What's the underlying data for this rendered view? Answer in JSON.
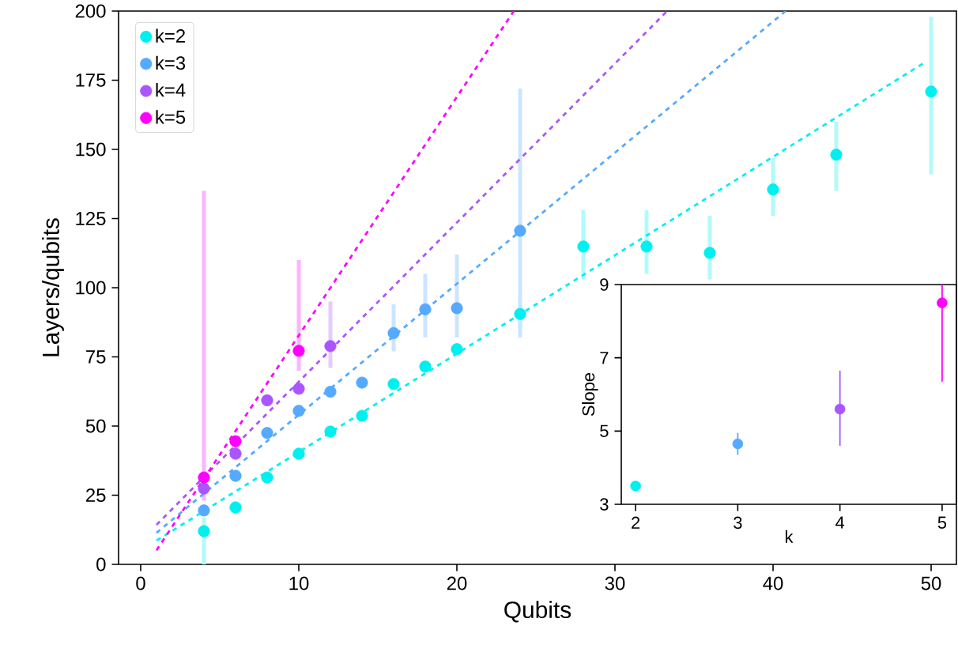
{
  "chart_data": [
    {
      "type": "scatter",
      "xlabel": "Qubits",
      "ylabel": "Layers/qubits",
      "xlim": [
        -1.4,
        51.6
      ],
      "ylim": [
        0,
        200
      ],
      "xticks": [
        0,
        10,
        20,
        30,
        40,
        50
      ],
      "yticks": [
        0,
        25,
        50,
        75,
        100,
        125,
        150,
        175,
        200
      ],
      "legend": "top left",
      "series": [
        {
          "name": "k=2",
          "marker": "circle",
          "color": "#00f0f0",
          "x": [
            4,
            6,
            8,
            10,
            12,
            14,
            16,
            18,
            20,
            24,
            28,
            32,
            36,
            40,
            44,
            50
          ],
          "values": [
            12,
            20.6,
            31.4,
            40,
            48,
            53.7,
            65.2,
            71.5,
            77.8,
            90.5,
            114.9,
            114.9,
            112.6,
            135.5,
            148.1,
            170.9
          ],
          "errors": [
            [
              0,
              17
            ],
            null,
            null,
            null,
            null,
            null,
            null,
            null,
            null,
            [
              85,
              95
            ],
            [
              103,
              128
            ],
            [
              105,
              128
            ],
            [
              103,
              126
            ],
            [
              126,
              147
            ],
            [
              135,
              160
            ],
            [
              141,
              198
            ]
          ]
        },
        {
          "name": "k=3",
          "marker": "circle",
          "color": "#55aaff",
          "x": [
            4,
            6,
            8,
            10,
            12,
            14,
            16,
            18,
            20,
            24
          ],
          "values": [
            19.5,
            32,
            47.5,
            55.5,
            62.4,
            65.7,
            83.6,
            92.2,
            92.6,
            120.6
          ],
          "errors": [
            null,
            null,
            null,
            null,
            null,
            null,
            [
              77,
              94
            ],
            [
              82,
              105
            ],
            [
              82,
              112
            ],
            [
              82,
              172
            ]
          ]
        },
        {
          "name": "k=4",
          "marker": "circle",
          "color": "#aa55ff",
          "x": [
            4,
            6,
            8,
            10,
            12
          ],
          "values": [
            27.4,
            40,
            59.3,
            63.5,
            78.9
          ],
          "errors": [
            null,
            null,
            null,
            null,
            [
              71,
              95
            ]
          ]
        },
        {
          "name": "k=5",
          "marker": "circle",
          "color": "#ff00ff",
          "x": [
            4,
            6,
            10
          ],
          "values": [
            31.4,
            44.5,
            77.2
          ],
          "errors": [
            [
              23,
              135
            ],
            null,
            [
              70,
              110
            ]
          ]
        },
        {
          "type": "line",
          "marker": "none",
          "line_style": "dashed",
          "color": "#00f0f0",
          "x": [
            1,
            49.7
          ],
          "values": [
            8.6,
            181.8
          ]
        },
        {
          "type": "line",
          "marker": "none",
          "line_style": "dashed",
          "color": "#55aaff",
          "x": [
            1,
            40.8
          ],
          "values": [
            11.4,
            200
          ]
        },
        {
          "type": "line",
          "marker": "none",
          "line_style": "dashed",
          "color": "#aa55ff",
          "x": [
            1,
            33.3
          ],
          "values": [
            14.3,
            200
          ]
        },
        {
          "type": "line",
          "marker": "none",
          "line_style": "dashed",
          "color": "#ff00ff",
          "x": [
            1,
            23.6
          ],
          "values": [
            5.1,
            200
          ]
        }
      ]
    },
    {
      "type": "scatter",
      "xlabel": "k",
      "ylabel": "Slope",
      "xlim": [
        1.86,
        5.14
      ],
      "ylim": [
        3,
        9
      ],
      "xticks": [
        2,
        3,
        4,
        5
      ],
      "yticks": [
        3,
        5,
        7,
        9
      ],
      "series": [
        {
          "marker": "circle",
          "color": "#00f0f0",
          "x": [
            2
          ],
          "values": [
            3.5
          ],
          "errors": [
            null
          ]
        },
        {
          "marker": "circle",
          "color": "#55aaff",
          "x": [
            3
          ],
          "values": [
            4.65
          ],
          "errors": [
            [
              4.35,
              4.95
            ]
          ]
        },
        {
          "marker": "circle",
          "color": "#aa55ff",
          "x": [
            4
          ],
          "values": [
            5.6
          ],
          "errors": [
            [
              4.6,
              6.65
            ]
          ]
        },
        {
          "marker": "circle",
          "color": "#ff00ff",
          "x": [
            5
          ],
          "values": [
            8.5
          ],
          "errors": [
            [
              6.35,
              9
            ]
          ]
        }
      ]
    }
  ]
}
